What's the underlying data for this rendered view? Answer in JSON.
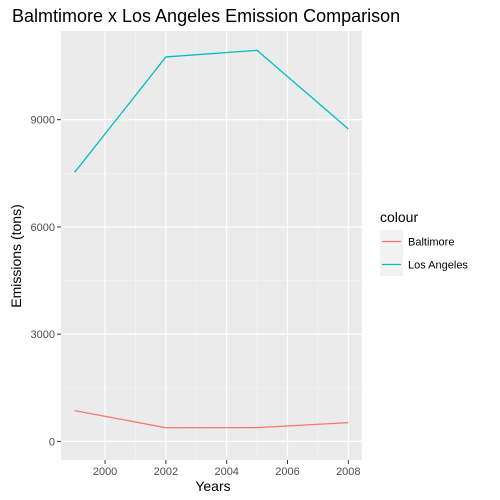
{
  "chart_data": {
    "type": "line",
    "title": "Balmtimore x Los Angeles Emission Comparison",
    "xlabel": "Years",
    "ylabel": "Emissions (tons)",
    "x": [
      1999,
      2002,
      2005,
      2008
    ],
    "xlim": [
      1998.55,
      2008.45
    ],
    "ylim": [
      -520,
      11480
    ],
    "x_ticks": [
      2000,
      2002,
      2004,
      2006,
      2008
    ],
    "y_ticks": [
      0,
      3000,
      6000,
      9000
    ],
    "grid": true,
    "legend": {
      "title": "colour",
      "placement": "right"
    },
    "series": [
      {
        "name": "Baltimore",
        "color": "#F8766D",
        "values": [
          862,
          382,
          385,
          525
        ]
      },
      {
        "name": "Los Angeles",
        "color": "#00BFC4",
        "values": [
          7527,
          10754,
          10938,
          8741
        ]
      }
    ]
  }
}
